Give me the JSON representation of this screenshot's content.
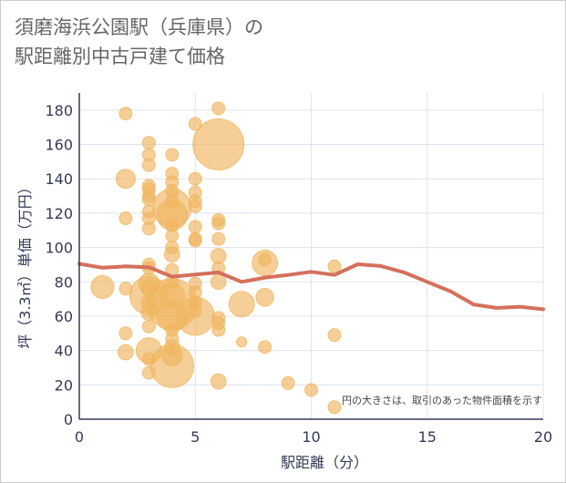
{
  "chart_data": {
    "type": "scatter",
    "title_line1": "須磨海浜公園駅（兵庫県）の",
    "title_line2": "駅距離別中古戸建て価格",
    "xlabel": "駅距離（分）",
    "ylabel": "坪（3.3㎡）単価（万円）",
    "xlim": [
      0,
      20
    ],
    "ylim": [
      0,
      190
    ],
    "x_ticks": [
      0,
      5,
      10,
      15,
      20
    ],
    "y_ticks": [
      0,
      20,
      40,
      60,
      80,
      100,
      120,
      140,
      160,
      180
    ],
    "note": "円の大きさは、取引のあった物件面積を示す",
    "colors": {
      "bubble": "#f0b660",
      "line": "#d4705c",
      "grid": "#dde3ee",
      "axis": "#333a55"
    },
    "bubbles": [
      {
        "x": 2,
        "y": 178,
        "s": 1
      },
      {
        "x": 2,
        "y": 140,
        "s": 1.5
      },
      {
        "x": 2,
        "y": 117,
        "s": 1
      },
      {
        "x": 2,
        "y": 76,
        "s": 1
      },
      {
        "x": 2,
        "y": 50,
        "s": 1
      },
      {
        "x": 2,
        "y": 39,
        "s": 1.2
      },
      {
        "x": 1,
        "y": 77,
        "s": 1.8
      },
      {
        "x": 3,
        "y": 161,
        "s": 1
      },
      {
        "x": 3,
        "y": 154,
        "s": 1
      },
      {
        "x": 3,
        "y": 148,
        "s": 1
      },
      {
        "x": 3,
        "y": 136,
        "s": 1
      },
      {
        "x": 3,
        "y": 134,
        "s": 1
      },
      {
        "x": 3,
        "y": 130,
        "s": 1
      },
      {
        "x": 3,
        "y": 128,
        "s": 1
      },
      {
        "x": 3,
        "y": 121,
        "s": 1
      },
      {
        "x": 3,
        "y": 117,
        "s": 1
      },
      {
        "x": 3,
        "y": 111,
        "s": 1
      },
      {
        "x": 3,
        "y": 90,
        "s": 1
      },
      {
        "x": 3,
        "y": 88,
        "s": 1
      },
      {
        "x": 3,
        "y": 79,
        "s": 1.6
      },
      {
        "x": 3,
        "y": 76,
        "s": 1.2
      },
      {
        "x": 3,
        "y": 72,
        "s": 3
      },
      {
        "x": 3,
        "y": 68,
        "s": 1.2
      },
      {
        "x": 3,
        "y": 62,
        "s": 1.2
      },
      {
        "x": 3,
        "y": 54,
        "s": 1
      },
      {
        "x": 3,
        "y": 40,
        "s": 2
      },
      {
        "x": 3,
        "y": 35,
        "s": 1
      },
      {
        "x": 3,
        "y": 27,
        "s": 1
      },
      {
        "x": 4,
        "y": 154,
        "s": 1
      },
      {
        "x": 4,
        "y": 143,
        "s": 1
      },
      {
        "x": 4,
        "y": 138,
        "s": 1
      },
      {
        "x": 4,
        "y": 133,
        "s": 1
      },
      {
        "x": 4,
        "y": 127,
        "s": 1
      },
      {
        "x": 4,
        "y": 123,
        "s": 3
      },
      {
        "x": 4,
        "y": 119,
        "s": 2.4
      },
      {
        "x": 4,
        "y": 113,
        "s": 1
      },
      {
        "x": 4,
        "y": 107,
        "s": 1
      },
      {
        "x": 4,
        "y": 100,
        "s": 1
      },
      {
        "x": 4,
        "y": 96,
        "s": 1.2
      },
      {
        "x": 4,
        "y": 87,
        "s": 1
      },
      {
        "x": 4,
        "y": 80,
        "s": 1
      },
      {
        "x": 4,
        "y": 72,
        "s": 2
      },
      {
        "x": 4,
        "y": 67,
        "s": 4
      },
      {
        "x": 4,
        "y": 60,
        "s": 2.4
      },
      {
        "x": 4,
        "y": 52,
        "s": 1
      },
      {
        "x": 4,
        "y": 47,
        "s": 1
      },
      {
        "x": 4,
        "y": 42,
        "s": 1.2
      },
      {
        "x": 4,
        "y": 37,
        "s": 1.6
      },
      {
        "x": 4,
        "y": 31,
        "s": 3.4
      },
      {
        "x": 5,
        "y": 172,
        "s": 1
      },
      {
        "x": 5,
        "y": 140,
        "s": 1
      },
      {
        "x": 5,
        "y": 132,
        "s": 1
      },
      {
        "x": 5,
        "y": 127,
        "s": 1
      },
      {
        "x": 5,
        "y": 124,
        "s": 1
      },
      {
        "x": 5,
        "y": 112,
        "s": 1
      },
      {
        "x": 5,
        "y": 105,
        "s": 1
      },
      {
        "x": 5,
        "y": 104,
        "s": 1
      },
      {
        "x": 5,
        "y": 79,
        "s": 1
      },
      {
        "x": 5,
        "y": 74,
        "s": 1
      },
      {
        "x": 5,
        "y": 68,
        "s": 1
      },
      {
        "x": 5,
        "y": 63,
        "s": 1
      },
      {
        "x": 5,
        "y": 60,
        "s": 3
      },
      {
        "x": 6,
        "y": 181,
        "s": 1
      },
      {
        "x": 6,
        "y": 160,
        "s": 4
      },
      {
        "x": 6,
        "y": 116,
        "s": 1
      },
      {
        "x": 6,
        "y": 114,
        "s": 1
      },
      {
        "x": 6,
        "y": 105,
        "s": 1
      },
      {
        "x": 6,
        "y": 95,
        "s": 1.2
      },
      {
        "x": 6,
        "y": 88,
        "s": 1
      },
      {
        "x": 6,
        "y": 80,
        "s": 1.2
      },
      {
        "x": 6,
        "y": 59,
        "s": 1
      },
      {
        "x": 6,
        "y": 56,
        "s": 1
      },
      {
        "x": 6,
        "y": 52,
        "s": 1
      },
      {
        "x": 6,
        "y": 22,
        "s": 1.2
      },
      {
        "x": 7,
        "y": 67,
        "s": 2
      },
      {
        "x": 7,
        "y": 45,
        "s": 0.8
      },
      {
        "x": 8,
        "y": 93,
        "s": 1
      },
      {
        "x": 8,
        "y": 91,
        "s": 2
      },
      {
        "x": 8,
        "y": 71,
        "s": 1.4
      },
      {
        "x": 8,
        "y": 42,
        "s": 1
      },
      {
        "x": 9,
        "y": 21,
        "s": 1
      },
      {
        "x": 10,
        "y": 17,
        "s": 1
      },
      {
        "x": 11,
        "y": 89,
        "s": 1
      },
      {
        "x": 11,
        "y": 49,
        "s": 1
      },
      {
        "x": 11,
        "y": 7,
        "s": 1
      }
    ],
    "trend": [
      {
        "x": 0,
        "y": 90.5
      },
      {
        "x": 1,
        "y": 88.2
      },
      {
        "x": 2,
        "y": 89.0
      },
      {
        "x": 3,
        "y": 88.5
      },
      {
        "x": 4,
        "y": 83.0
      },
      {
        "x": 5,
        "y": 84.2
      },
      {
        "x": 6,
        "y": 85.5
      },
      {
        "x": 7,
        "y": 80.0
      },
      {
        "x": 8,
        "y": 82.5
      },
      {
        "x": 9,
        "y": 84.0
      },
      {
        "x": 10,
        "y": 85.8
      },
      {
        "x": 11,
        "y": 84.0
      },
      {
        "x": 12,
        "y": 90.2
      },
      {
        "x": 13,
        "y": 89.2
      },
      {
        "x": 14,
        "y": 85.5
      },
      {
        "x": 15,
        "y": 80.0
      },
      {
        "x": 16,
        "y": 74.5
      },
      {
        "x": 17,
        "y": 66.8
      },
      {
        "x": 18,
        "y": 64.8
      },
      {
        "x": 19,
        "y": 65.5
      },
      {
        "x": 20,
        "y": 64.0
      }
    ]
  }
}
